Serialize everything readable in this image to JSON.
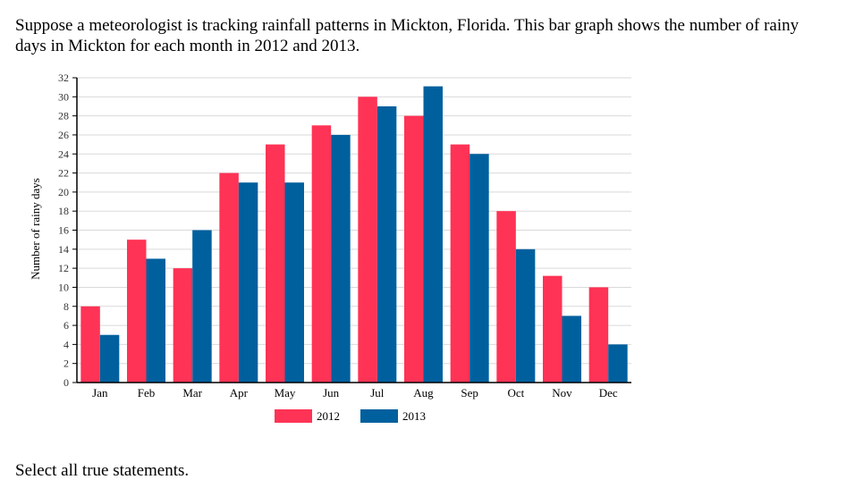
{
  "question": {
    "text": "Suppose a meteorologist is tracking rainfall patterns in Mickton, Florida. This bar graph shows the number of rainy days in Mickton for each month in 2012 and 2013."
  },
  "prompt": {
    "text": "Select all true statements."
  },
  "chart_data": {
    "type": "bar",
    "title": "",
    "xlabel": "",
    "ylabel": "Number of rainy days",
    "ylim": [
      0,
      32
    ],
    "ytick_step": 2,
    "grid": true,
    "legend": "bottom-center",
    "categories": [
      "Jan",
      "Feb",
      "Mar",
      "Apr",
      "May",
      "Jun",
      "Jul",
      "Aug",
      "Sep",
      "Oct",
      "Nov",
      "Dec"
    ],
    "series": [
      {
        "name": "2012",
        "color": "#ff3355",
        "values": [
          8,
          15,
          12,
          22,
          25,
          27,
          30,
          28,
          25,
          18,
          11.2,
          10
        ]
      },
      {
        "name": "2013",
        "color": "#00609e",
        "values": [
          5,
          13,
          16,
          21,
          21,
          26,
          29,
          31.1,
          24,
          14,
          7,
          4
        ]
      }
    ]
  }
}
